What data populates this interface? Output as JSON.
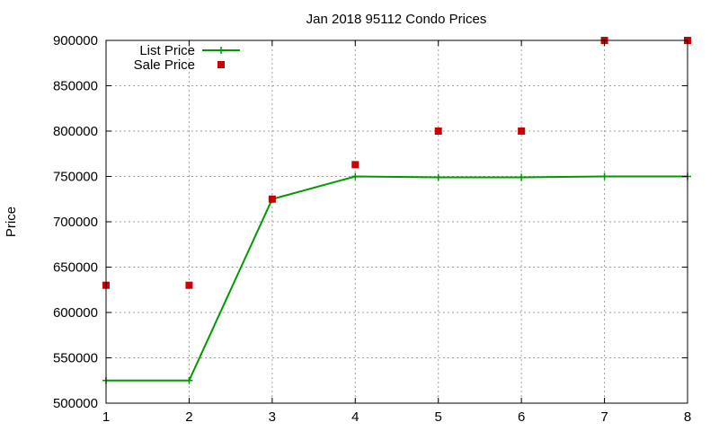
{
  "chart_data": {
    "type": "line",
    "title": "Jan 2018 95112 Condo Prices",
    "xlabel": "",
    "ylabel": "Price",
    "xlim": [
      1,
      8
    ],
    "ylim": [
      500000,
      900000
    ],
    "xticks": [
      1,
      2,
      3,
      4,
      5,
      6,
      7,
      8
    ],
    "yticks": [
      500000,
      550000,
      600000,
      650000,
      700000,
      750000,
      800000,
      850000,
      900000
    ],
    "grid": true,
    "legend_position": "top-left",
    "series": [
      {
        "name": "List Price",
        "style": "lines+crosses",
        "color": "#009900",
        "x": [
          1,
          2,
          3,
          4,
          5,
          6,
          7,
          8
        ],
        "y": [
          525000,
          525000,
          725000,
          750000,
          749000,
          749000,
          750000,
          750000
        ]
      },
      {
        "name": "Sale Price",
        "style": "squares",
        "color": "#cc0000",
        "x": [
          1,
          2,
          3,
          4,
          5,
          6,
          7,
          8
        ],
        "y": [
          630000,
          630000,
          725000,
          763000,
          800000,
          800000,
          900000,
          900000
        ]
      }
    ]
  }
}
